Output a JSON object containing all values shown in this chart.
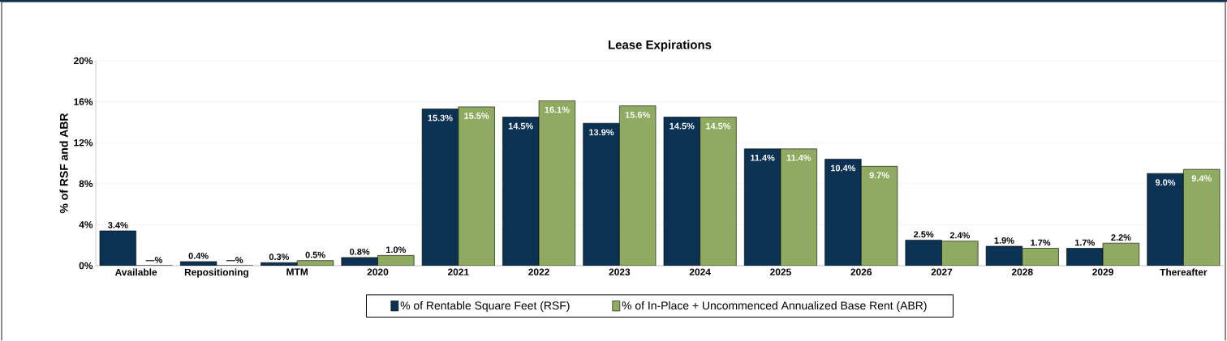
{
  "chart_data": {
    "type": "bar",
    "title": "Lease Expirations",
    "ylabel": "% of RSF and ABR",
    "categories": [
      "Available",
      "Repositioning",
      "MTM",
      "2020",
      "2021",
      "2022",
      "2023",
      "2024",
      "2025",
      "2026",
      "2027",
      "2028",
      "2029",
      "Thereafter"
    ],
    "series": [
      {
        "name": "% of Rentable Square Feet (RSF)",
        "color": "#0b3252",
        "values": [
          3.4,
          0.4,
          0.3,
          0.8,
          15.3,
          14.5,
          13.9,
          14.5,
          11.4,
          10.4,
          2.5,
          1.9,
          1.7,
          9.0
        ],
        "value_labels": [
          "3.4%",
          "0.4%",
          "0.3%",
          "0.8%",
          "15.3%",
          "14.5%",
          "13.9%",
          "14.5%",
          "11.4%",
          "10.4%",
          "2.5%",
          "1.9%",
          "1.7%",
          "9.0%"
        ]
      },
      {
        "name": "% of In-Place + Uncommenced Annualized Base Rent (ABR)",
        "color": "#8fab62",
        "values": [
          0,
          0,
          0.5,
          1.0,
          15.5,
          16.1,
          15.6,
          14.5,
          11.4,
          9.7,
          2.4,
          1.7,
          2.2,
          9.4
        ],
        "value_labels": [
          "—%",
          "—%",
          "0.5%",
          "1.0%",
          "15.5%",
          "16.1%",
          "15.6%",
          "14.5%",
          "11.4%",
          "9.7%",
          "2.4%",
          "1.7%",
          "2.2%",
          "9.4%"
        ]
      }
    ],
    "ylim": [
      0,
      20
    ],
    "yticks": [
      {
        "value": 0,
        "label": "0%"
      },
      {
        "value": 4,
        "label": "4%"
      },
      {
        "value": 8,
        "label": "8%"
      },
      {
        "value": 12,
        "label": "12%"
      },
      {
        "value": 16,
        "label": "16%"
      },
      {
        "value": 20,
        "label": "20%"
      }
    ],
    "grid": "y",
    "legend": "bottom"
  }
}
